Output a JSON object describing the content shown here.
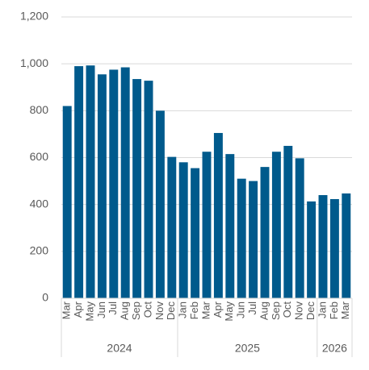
{
  "chart_data": {
    "type": "bar",
    "color": "#005a8c",
    "grid": true,
    "ylim": [
      0,
      1200
    ],
    "yticks": [
      0,
      200,
      400,
      600,
      800,
      {
        "value": 1000,
        "label": "1,000"
      },
      {
        "value": 1200,
        "label": "1,200"
      }
    ],
    "groups": [
      {
        "label": "2024",
        "categories": [
          "Mar",
          "Apr",
          "May",
          "Jun",
          "Jul",
          "Aug",
          "Sep",
          "Oct",
          "Nov",
          "Dec"
        ],
        "values": [
          820,
          990,
          993,
          955,
          975,
          985,
          935,
          928,
          800,
          603
        ]
      },
      {
        "label": "2025",
        "categories": [
          "Jan",
          "Feb",
          "Mar",
          "Apr",
          "May",
          "Jun",
          "Jul",
          "Aug",
          "Sep",
          "Oct",
          "Nov",
          "Dec"
        ],
        "values": [
          580,
          555,
          625,
          705,
          615,
          510,
          500,
          560,
          625,
          650,
          597,
          413
        ]
      },
      {
        "label": "2026",
        "categories": [
          "Jan",
          "Feb",
          "Mar"
        ],
        "values": [
          440,
          423,
          447
        ]
      }
    ]
  }
}
